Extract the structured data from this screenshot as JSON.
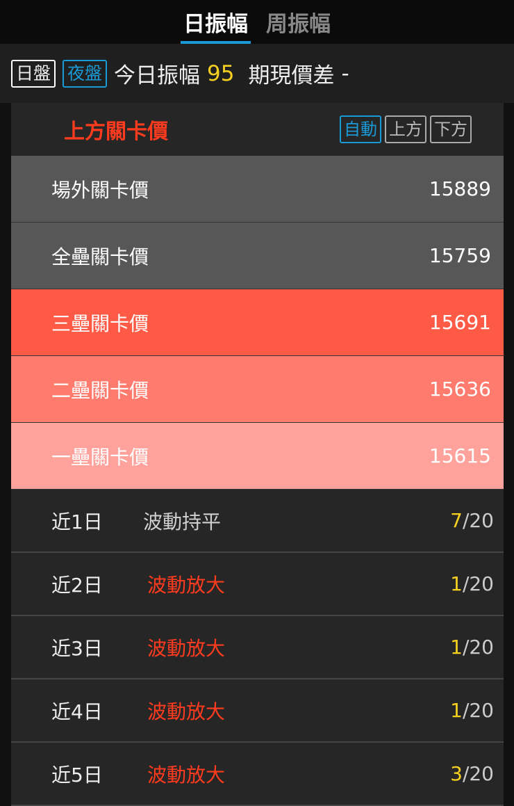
{
  "tabs": [
    {
      "label": "日振幅",
      "active": true
    },
    {
      "label": "周振幅",
      "active": false
    }
  ],
  "header": {
    "day_label": "日盤",
    "night_label": "夜盤",
    "amp_label": "今日振幅",
    "amp_value": "95",
    "basis_label": "期現價差",
    "basis_value": "-"
  },
  "section": {
    "title": "上方關卡價",
    "buttons": [
      "自動",
      "上方",
      "下方"
    ]
  },
  "levels": [
    {
      "label": "場外關卡價",
      "value": "15889",
      "color": "#575757"
    },
    {
      "label": "全壘關卡價",
      "value": "15759",
      "color": "#575757"
    },
    {
      "label": "三壘關卡價",
      "value": "15691",
      "color": "#ff5a45"
    },
    {
      "label": "二壘關卡價",
      "value": "15636",
      "color": "#ff7b6e"
    },
    {
      "label": "一壘關卡價",
      "value": "15615",
      "color": "#ffa29c"
    }
  ],
  "stats": [
    {
      "days": "近1日",
      "trend": "波動持平",
      "count": "7",
      "total": "/20",
      "trend_color": "#d0d0d0"
    },
    {
      "days": "近2日",
      "trend": "波動放大",
      "count": "1",
      "total": "/20",
      "trend_color": "#ff3b1f"
    },
    {
      "days": "近3日",
      "trend": "波動放大",
      "count": "1",
      "total": "/20",
      "trend_color": "#ff3b1f"
    },
    {
      "days": "近4日",
      "trend": "波動放大",
      "count": "1",
      "total": "/20",
      "trend_color": "#ff3b1f"
    },
    {
      "days": "近5日",
      "trend": "波動放大",
      "count": "3",
      "total": "/20",
      "trend_color": "#ff3b1f"
    }
  ]
}
